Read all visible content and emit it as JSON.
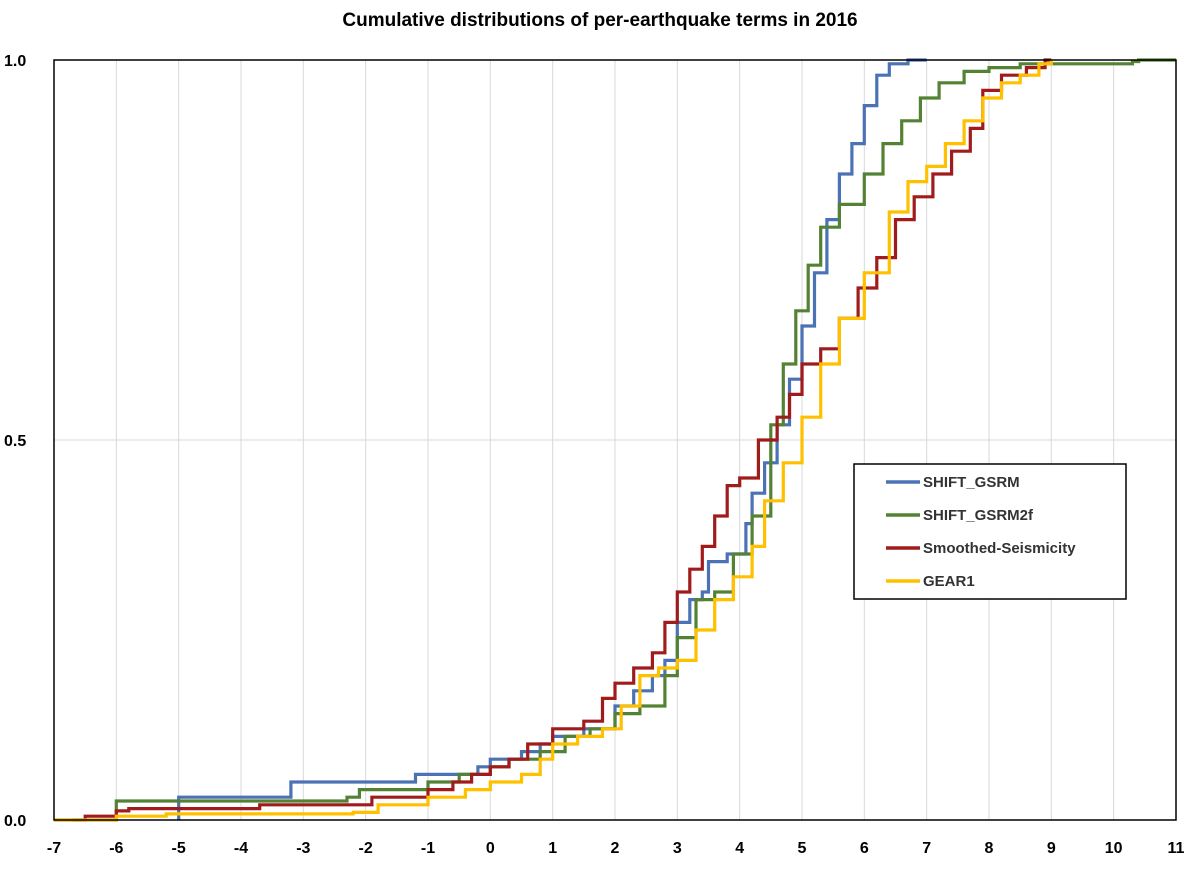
{
  "chart_data": {
    "type": "line",
    "title": "Cumulative distributions of per-earthquake terms in 2016",
    "xlabel": "",
    "ylabel": "",
    "xlim": [
      -7,
      11
    ],
    "ylim": [
      0,
      1
    ],
    "x_ticks": [
      "-7",
      "-6",
      "-5",
      "-4",
      "-3",
      "-2",
      "-1",
      "0",
      "1",
      "2",
      "3",
      "4",
      "5",
      "6",
      "7",
      "8",
      "9",
      "10",
      "11"
    ],
    "y_ticks": [
      "0.0",
      "0.5",
      "1.0"
    ],
    "grid": "vertical",
    "legend_position": "right-middle",
    "series": [
      {
        "name": "SHIFT_GSRM",
        "color": "#4a72b5",
        "points": [
          [
            -5.0,
            0
          ],
          [
            -5.0,
            0.03
          ],
          [
            -3.3,
            0.03
          ],
          [
            -3.2,
            0.05
          ],
          [
            -1.3,
            0.05
          ],
          [
            -1.2,
            0.06
          ],
          [
            -0.4,
            0.06
          ],
          [
            -0.2,
            0.07
          ],
          [
            0,
            0.08
          ],
          [
            0.5,
            0.09
          ],
          [
            0.8,
            0.1
          ],
          [
            1.0,
            0.11
          ],
          [
            1.5,
            0.12
          ],
          [
            2.0,
            0.15
          ],
          [
            2.3,
            0.17
          ],
          [
            2.6,
            0.19
          ],
          [
            2.8,
            0.21
          ],
          [
            3.0,
            0.26
          ],
          [
            3.2,
            0.29
          ],
          [
            3.4,
            0.3
          ],
          [
            3.5,
            0.34
          ],
          [
            3.8,
            0.35
          ],
          [
            4.1,
            0.39
          ],
          [
            4.2,
            0.43
          ],
          [
            4.4,
            0.47
          ],
          [
            4.6,
            0.52
          ],
          [
            4.8,
            0.58
          ],
          [
            5.0,
            0.65
          ],
          [
            5.2,
            0.72
          ],
          [
            5.4,
            0.79
          ],
          [
            5.6,
            0.85
          ],
          [
            5.8,
            0.89
          ],
          [
            6.0,
            0.94
          ],
          [
            6.2,
            0.98
          ],
          [
            6.4,
            0.995
          ],
          [
            6.7,
            1.0
          ],
          [
            7.0,
            1.0
          ]
        ]
      },
      {
        "name": "SHIFT_GSRM2f",
        "color": "#548235",
        "points": [
          [
            -7.0,
            0
          ],
          [
            -6.0,
            0
          ],
          [
            -6.0,
            0.025
          ],
          [
            -3.0,
            0.025
          ],
          [
            -2.3,
            0.03
          ],
          [
            -2.1,
            0.04
          ],
          [
            -1.6,
            0.04
          ],
          [
            -1.0,
            0.05
          ],
          [
            -0.5,
            0.06
          ],
          [
            0,
            0.07
          ],
          [
            0.3,
            0.08
          ],
          [
            0.8,
            0.09
          ],
          [
            1.2,
            0.11
          ],
          [
            1.6,
            0.12
          ],
          [
            2.0,
            0.14
          ],
          [
            2.4,
            0.15
          ],
          [
            2.8,
            0.19
          ],
          [
            3.0,
            0.24
          ],
          [
            3.3,
            0.29
          ],
          [
            3.6,
            0.3
          ],
          [
            3.9,
            0.35
          ],
          [
            4.2,
            0.4
          ],
          [
            4.5,
            0.52
          ],
          [
            4.7,
            0.6
          ],
          [
            4.9,
            0.67
          ],
          [
            5.1,
            0.73
          ],
          [
            5.3,
            0.78
          ],
          [
            5.6,
            0.81
          ],
          [
            6.0,
            0.85
          ],
          [
            6.3,
            0.89
          ],
          [
            6.6,
            0.92
          ],
          [
            6.9,
            0.95
          ],
          [
            7.2,
            0.97
          ],
          [
            7.6,
            0.985
          ],
          [
            8.0,
            0.99
          ],
          [
            8.5,
            0.995
          ],
          [
            9.5,
            0.995
          ],
          [
            10.3,
            0.998
          ],
          [
            10.4,
            1.0
          ],
          [
            11.0,
            1.0
          ]
        ]
      },
      {
        "name": "Smoothed-Seismicity",
        "color": "#a01c1c",
        "points": [
          [
            -6.7,
            0.0
          ],
          [
            -6.5,
            0.005
          ],
          [
            -6.0,
            0.012
          ],
          [
            -5.8,
            0.015
          ],
          [
            -3.8,
            0.015
          ],
          [
            -3.7,
            0.02
          ],
          [
            -2.0,
            0.02
          ],
          [
            -1.9,
            0.03
          ],
          [
            -1.0,
            0.04
          ],
          [
            -0.6,
            0.05
          ],
          [
            -0.3,
            0.06
          ],
          [
            0,
            0.07
          ],
          [
            0.3,
            0.08
          ],
          [
            0.6,
            0.1
          ],
          [
            1.0,
            0.12
          ],
          [
            1.5,
            0.13
          ],
          [
            1.8,
            0.16
          ],
          [
            2.0,
            0.18
          ],
          [
            2.3,
            0.2
          ],
          [
            2.6,
            0.22
          ],
          [
            2.8,
            0.26
          ],
          [
            3.0,
            0.3
          ],
          [
            3.2,
            0.33
          ],
          [
            3.4,
            0.36
          ],
          [
            3.6,
            0.4
          ],
          [
            3.8,
            0.44
          ],
          [
            4.0,
            0.45
          ],
          [
            4.3,
            0.5
          ],
          [
            4.6,
            0.53
          ],
          [
            4.8,
            0.56
          ],
          [
            5.0,
            0.6
          ],
          [
            5.3,
            0.62
          ],
          [
            5.6,
            0.66
          ],
          [
            5.9,
            0.7
          ],
          [
            6.2,
            0.74
          ],
          [
            6.5,
            0.79
          ],
          [
            6.8,
            0.82
          ],
          [
            7.1,
            0.85
          ],
          [
            7.4,
            0.88
          ],
          [
            7.7,
            0.91
          ],
          [
            7.9,
            0.96
          ],
          [
            8.2,
            0.98
          ],
          [
            8.6,
            0.99
          ],
          [
            8.9,
            1.0
          ],
          [
            9.0,
            1.0
          ]
        ]
      },
      {
        "name": "GEAR1",
        "color": "#ffc000",
        "points": [
          [
            -7.0,
            0.0
          ],
          [
            -6.0,
            0.005
          ],
          [
            -5.2,
            0.008
          ],
          [
            -2.2,
            0.01
          ],
          [
            -1.8,
            0.02
          ],
          [
            -1.0,
            0.03
          ],
          [
            -0.4,
            0.04
          ],
          [
            0,
            0.05
          ],
          [
            0.5,
            0.06
          ],
          [
            0.8,
            0.08
          ],
          [
            1.0,
            0.1
          ],
          [
            1.4,
            0.11
          ],
          [
            1.8,
            0.12
          ],
          [
            2.1,
            0.15
          ],
          [
            2.4,
            0.19
          ],
          [
            2.7,
            0.2
          ],
          [
            3.0,
            0.21
          ],
          [
            3.3,
            0.25
          ],
          [
            3.6,
            0.29
          ],
          [
            3.9,
            0.32
          ],
          [
            4.2,
            0.36
          ],
          [
            4.4,
            0.42
          ],
          [
            4.7,
            0.47
          ],
          [
            5.0,
            0.53
          ],
          [
            5.3,
            0.6
          ],
          [
            5.6,
            0.66
          ],
          [
            6.0,
            0.72
          ],
          [
            6.4,
            0.8
          ],
          [
            6.7,
            0.84
          ],
          [
            7.0,
            0.86
          ],
          [
            7.3,
            0.89
          ],
          [
            7.6,
            0.92
          ],
          [
            7.9,
            0.95
          ],
          [
            8.2,
            0.97
          ],
          [
            8.5,
            0.98
          ],
          [
            8.8,
            0.995
          ],
          [
            9.0,
            1.0
          ]
        ]
      }
    ]
  }
}
